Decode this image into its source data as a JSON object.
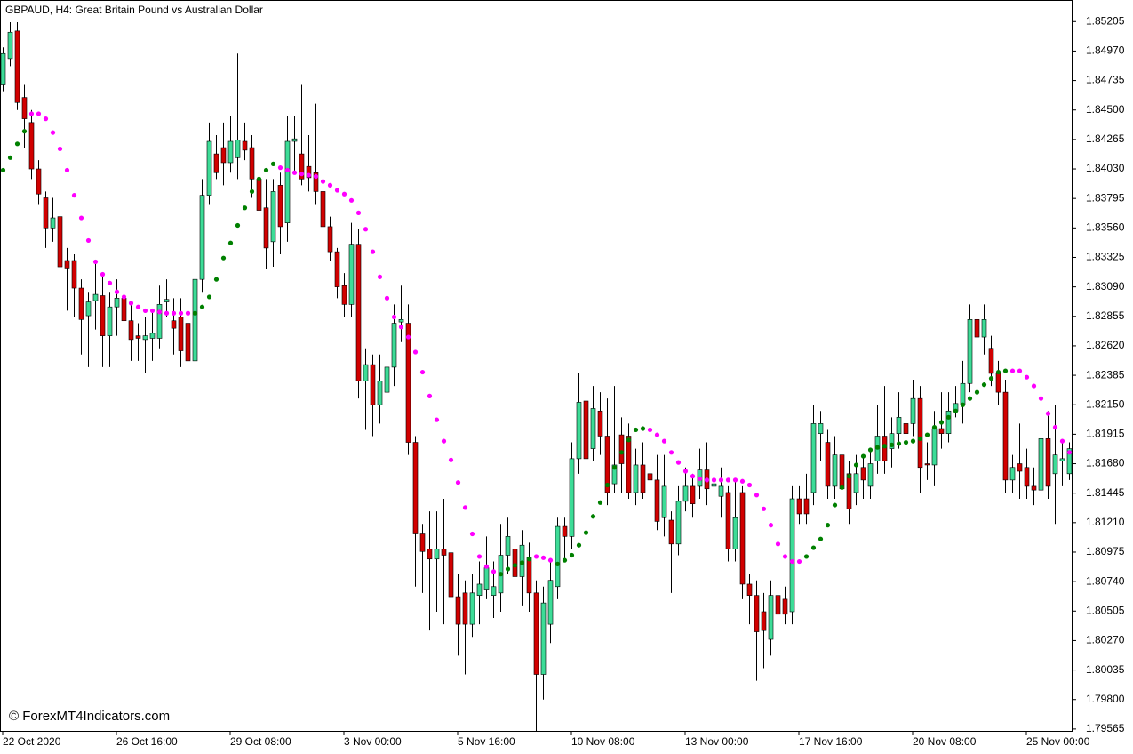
{
  "chart_data": {
    "type": "candlestick",
    "title": "GBPAUD, H4:  Great Britain Pound vs Australian Dollar",
    "watermark": "© ForexMT4Indicators.com",
    "up_color": "#3ddc97",
    "down_color": "#d10000",
    "wick_color": "#000000",
    "sar_below_color": "#008000",
    "sar_above_color": "#ff00ff",
    "ylim": [
      1.7955,
      1.8537
    ],
    "yticks": [
      1.85205,
      {
        "value": 1.8497,
        "label": "1.84970"
      },
      1.84735,
      {
        "value": 1.845,
        "label": "1.84500"
      },
      1.84265,
      {
        "value": 1.8403,
        "label": "1.84030"
      },
      1.83795,
      {
        "value": 1.8356,
        "label": "1.83560"
      },
      1.83325,
      {
        "value": 1.8309,
        "label": "1.83090"
      },
      1.82855,
      {
        "value": 1.8262,
        "label": "1.82620"
      },
      1.82385,
      {
        "value": 1.8215,
        "label": "1.82150"
      },
      1.81915,
      {
        "value": 1.8168,
        "label": "1.81680"
      },
      1.81445,
      {
        "value": 1.8121,
        "label": "1.81210"
      },
      1.80975,
      {
        "value": 1.8074,
        "label": "1.80740"
      },
      1.80505,
      {
        "value": 1.8027,
        "label": "1.80270"
      },
      1.80035,
      {
        "value": 1.798,
        "label": "1.79800"
      },
      1.79565
    ],
    "xticks": [
      {
        "value": 0,
        "label": "22 Oct 2020"
      },
      {
        "value": 16,
        "label": "26 Oct 16:00"
      },
      {
        "value": 32,
        "label": "29 Oct 08:00"
      },
      {
        "value": 48,
        "label": "3 Nov 00:00"
      },
      {
        "value": 64,
        "label": "5 Nov 16:00"
      },
      {
        "value": 80,
        "label": "10 Nov 08:00"
      },
      {
        "value": 96,
        "label": "13 Nov 00:00"
      },
      {
        "value": 112,
        "label": "17 Nov 16:00"
      },
      {
        "value": 128,
        "label": "20 Nov 08:00"
      },
      {
        "value": 144,
        "label": "25 Nov 00:00"
      }
    ],
    "open": [
      1.847,
      1.8491,
      1.8513,
      1.846,
      1.844,
      1.8403,
      1.838,
      1.8356,
      1.8365,
      1.833,
      1.833,
      1.8308,
      1.8286,
      1.8298,
      1.8302,
      1.827,
      1.8293,
      1.83,
      1.8282,
      1.827,
      1.8267,
      1.8268,
      1.8268,
      1.8297,
      1.8282,
      1.8285,
      1.828,
      1.825,
      1.8315,
      1.8382,
      1.8415,
      1.842,
      1.8408,
      1.8412,
      1.8425,
      1.842,
      1.8395,
      1.8372,
      1.8345,
      1.839,
      1.836,
      1.8425,
      1.8415,
      1.8405,
      1.84,
      1.8385,
      1.8357,
      1.8337,
      1.831,
      1.8295,
      1.8343,
      1.8234,
      1.8247,
      1.8215,
      1.8225,
      1.8245,
      1.8281,
      1.828,
      1.8185,
      1.8112,
      1.81,
      1.8092,
      1.81,
      1.8097,
      1.8062,
      1.8065,
      1.804,
      1.8063,
      1.8068,
      1.8063,
      1.8065,
      1.8095,
      1.81,
      1.8078,
      1.8093,
      1.8065,
      1.8,
      1.804,
      1.807,
      1.8118,
      1.811,
      1.8172,
      1.8218,
      1.818,
      1.821,
      1.819,
      1.8152,
      1.8191,
      1.819,
      1.8145,
      1.8167,
      1.816,
      1.8155,
      1.8125,
      1.8123,
      1.8104,
      1.8138,
      1.815,
      1.815,
      1.8163,
      1.815,
      1.8142,
      1.8145,
      1.81,
      1.8145,
      1.8072,
      1.8063,
      1.805,
      1.8028,
      1.8063,
      1.806,
      1.805,
      1.814,
      1.814,
      1.8145,
      1.8192,
      1.8185,
      1.815,
      1.8175,
      1.816,
      1.8145,
      1.8165,
      1.815,
      1.817,
      1.819,
      1.818,
      1.8192,
      1.82,
      1.82,
      1.822,
      1.8168,
      1.8167,
      1.8196,
      1.8192,
      1.821,
      1.8215,
      1.8232,
      1.8283,
      1.8269,
      1.826,
      1.824,
      1.8225,
      1.8155,
      1.8168,
      1.8165,
      1.815,
      1.8147,
      1.8188,
      1.816,
      1.817,
      1.816
    ],
    "high": [
      1.85,
      1.852,
      1.852,
      1.847,
      1.845,
      1.841,
      1.8385,
      1.838,
      1.838,
      1.834,
      1.8335,
      1.8315,
      1.8305,
      1.833,
      1.832,
      1.8305,
      1.8315,
      1.832,
      1.8295,
      1.828,
      1.8285,
      1.829,
      1.831,
      1.8315,
      1.83,
      1.83,
      1.8295,
      1.833,
      1.8395,
      1.844,
      1.843,
      1.844,
      1.8445,
      1.8495,
      1.844,
      1.843,
      1.842,
      1.8395,
      1.8395,
      1.84,
      1.8445,
      1.8445,
      1.847,
      1.843,
      1.8455,
      1.8415,
      1.8365,
      1.834,
      1.832,
      1.836,
      1.8355,
      1.826,
      1.8255,
      1.8255,
      1.827,
      1.8295,
      1.831,
      1.8295,
      1.819,
      1.812,
      1.813,
      1.813,
      1.814,
      1.8115,
      1.808,
      1.8075,
      1.808,
      1.809,
      1.811,
      1.809,
      1.812,
      1.8125,
      1.812,
      1.8115,
      1.8105,
      1.8075,
      1.807,
      1.809,
      1.8125,
      1.8125,
      1.8185,
      1.824,
      1.826,
      1.823,
      1.8225,
      1.822,
      1.823,
      1.8205,
      1.82,
      1.818,
      1.8185,
      1.819,
      1.8175,
      1.8175,
      1.813,
      1.815,
      1.8165,
      1.816,
      1.818,
      1.8185,
      1.817,
      1.8165,
      1.815,
      1.8155,
      1.815,
      1.808,
      1.8075,
      1.8065,
      1.8075,
      1.8075,
      1.807,
      1.815,
      1.815,
      1.816,
      1.8215,
      1.821,
      1.8195,
      1.819,
      1.82,
      1.817,
      1.8175,
      1.8175,
      1.818,
      1.8215,
      1.823,
      1.8205,
      1.8225,
      1.8215,
      1.8235,
      1.823,
      1.8185,
      1.821,
      1.8225,
      1.8225,
      1.823,
      1.825,
      1.8295,
      1.8316,
      1.8295,
      1.827,
      1.825,
      1.8235,
      1.8175,
      1.82,
      1.818,
      1.8165,
      1.82,
      1.821,
      1.8215,
      1.8185,
      1.8185
    ],
    "low": [
      1.8465,
      1.8485,
      1.845,
      1.842,
      1.8395,
      1.8375,
      1.834,
      1.8345,
      1.8315,
      1.829,
      1.8285,
      1.8255,
      1.8245,
      1.8275,
      1.8245,
      1.8245,
      1.827,
      1.825,
      1.825,
      1.825,
      1.824,
      1.825,
      1.826,
      1.8285,
      1.8255,
      1.8245,
      1.824,
      1.8215,
      1.8305,
      1.8375,
      1.8395,
      1.839,
      1.84,
      1.8395,
      1.841,
      1.838,
      1.835,
      1.8323,
      1.8325,
      1.8335,
      1.8345,
      1.84,
      1.839,
      1.8385,
      1.8375,
      1.834,
      1.833,
      1.83,
      1.8285,
      1.8285,
      1.822,
      1.8195,
      1.819,
      1.82,
      1.819,
      1.823,
      1.8265,
      1.8175,
      1.807,
      1.8065,
      1.8035,
      1.805,
      1.804,
      1.8035,
      1.8015,
      1.8,
      1.803,
      1.804,
      1.806,
      1.8045,
      1.805,
      1.808,
      1.8065,
      1.8055,
      1.805,
      1.7955,
      1.798,
      1.8025,
      1.806,
      1.809,
      1.81,
      1.816,
      1.8165,
      1.817,
      1.8175,
      1.8135,
      1.8145,
      1.8145,
      1.814,
      1.8135,
      1.814,
      1.814,
      1.8115,
      1.811,
      1.8065,
      1.8095,
      1.813,
      1.8125,
      1.814,
      1.8135,
      1.8135,
      1.8125,
      1.809,
      1.809,
      1.806,
      1.804,
      1.7995,
      1.8005,
      1.8015,
      1.8035,
      1.804,
      1.804,
      1.812,
      1.812,
      1.8135,
      1.817,
      1.814,
      1.814,
      1.813,
      1.812,
      1.8135,
      1.814,
      1.814,
      1.816,
      1.816,
      1.8165,
      1.818,
      1.818,
      1.819,
      1.8145,
      1.8155,
      1.815,
      1.818,
      1.8185,
      1.8205,
      1.82,
      1.8225,
      1.8255,
      1.8255,
      1.823,
      1.8215,
      1.8145,
      1.8145,
      1.814,
      1.814,
      1.8135,
      1.8135,
      1.814,
      1.812,
      1.815,
      1.8155
    ],
    "close": [
      1.8495,
      1.8512,
      1.8456,
      1.8443,
      1.8403,
      1.8383,
      1.8356,
      1.8364,
      1.8325,
      1.8324,
      1.8308,
      1.8283,
      1.8297,
      1.8303,
      1.827,
      1.8293,
      1.83,
      1.8282,
      1.8267,
      1.8268,
      1.827,
      1.8272,
      1.8295,
      1.8299,
      1.8276,
      1.8258,
      1.825,
      1.8315,
      1.8382,
      1.8425,
      1.84,
      1.8408,
      1.8425,
      1.8426,
      1.8418,
      1.8395,
      1.837,
      1.834,
      1.8385,
      1.8357,
      1.8425,
      1.8427,
      1.8395,
      1.8396,
      1.8385,
      1.8357,
      1.8337,
      1.8309,
      1.8295,
      1.8343,
      1.8234,
      1.8247,
      1.8215,
      1.8234,
      1.8245,
      1.828,
      1.8283,
      1.8185,
      1.8112,
      1.8098,
      1.8092,
      1.81,
      1.8095,
      1.8062,
      1.804,
      1.804,
      1.8065,
      1.8072,
      1.8085,
      1.807,
      1.8095,
      1.811,
      1.8078,
      1.8103,
      1.8065,
      1.8,
      1.8057,
      1.8075,
      1.8118,
      1.811,
      1.8172,
      1.8217,
      1.8172,
      1.8212,
      1.819,
      1.8145,
      1.8167,
      1.8168,
      1.8145,
      1.8167,
      1.8145,
      1.8155,
      1.8122,
      1.815,
      1.8104,
      1.8138,
      1.815,
      1.8136,
      1.8163,
      1.8148,
      1.8152,
      1.815,
      1.81,
      1.8125,
      1.8072,
      1.8063,
      1.8034,
      1.8035,
      1.8063,
      1.8048,
      1.8048,
      1.814,
      1.8128,
      1.8128,
      1.82,
      1.82,
      1.815,
      1.8175,
      1.8148,
      1.8132,
      1.816,
      1.8155,
      1.8168,
      1.819,
      1.817,
      1.8192,
      1.8205,
      1.8192,
      1.822,
      1.8165,
      1.8167,
      1.8196,
      1.8192,
      1.821,
      1.8216,
      1.8232,
      1.8283,
      1.8269,
      1.8283,
      1.824,
      1.8225,
      1.8155,
      1.8165,
      1.8162,
      1.815,
      1.8147,
      1.8188,
      1.815,
      1.8175,
      1.8172,
      1.818
    ],
    "sar_below": [
      1.8402,
      1.8412,
      1.8423,
      1.8433,
      null,
      null,
      null,
      null,
      null,
      null,
      null,
      null,
      null,
      null,
      null,
      null,
      null,
      null,
      null,
      null,
      null,
      null,
      null,
      null,
      null,
      null,
      null,
      1.8288,
      1.8293,
      1.8301,
      1.8315,
      1.8332,
      1.8344,
      1.8358,
      1.8372,
      1.8385,
      1.8395,
      1.8402,
      1.8407,
      null,
      null,
      null,
      null,
      null,
      null,
      null,
      null,
      null,
      null,
      null,
      null,
      null,
      null,
      null,
      null,
      null,
      null,
      null,
      null,
      null,
      null,
      null,
      null,
      null,
      null,
      null,
      null,
      null,
      null,
      null,
      1.808,
      1.8084,
      1.8087,
      1.8089,
      1.8092,
      null,
      null,
      null,
      1.8088,
      1.8091,
      1.8095,
      1.8103,
      1.8113,
      1.8126,
      1.8137,
      1.8151,
      1.8165,
      1.8177,
      1.8187,
      1.8195,
      1.8196,
      null,
      null,
      null,
      null,
      null,
      null,
      null,
      null,
      null,
      null,
      null,
      null,
      null,
      null,
      null,
      null,
      null,
      null,
      null,
      null,
      null,
      null,
      1.8094,
      1.8101,
      1.8108,
      1.8119,
      1.8135,
      1.8149,
      1.8158,
      1.8167,
      1.8174,
      1.8179,
      1.8181,
      1.8182,
      1.8183,
      1.8184,
      1.8185,
      1.8186,
      1.8188,
      1.8191,
      1.8197,
      1.8201,
      1.8205,
      1.821,
      1.8215,
      1.822,
      1.8225,
      1.8231,
      1.8236,
      1.8241,
      1.8242,
      null,
      null,
      null,
      null,
      null,
      null,
      null,
      null,
      null
    ],
    "sar_above": [
      null,
      null,
      null,
      null,
      1.8447,
      1.8447,
      1.8443,
      1.8432,
      1.8419,
      1.8402,
      1.8382,
      1.8364,
      1.8346,
      1.8329,
      1.8319,
      1.8312,
      1.8305,
      1.8301,
      1.8296,
      1.8293,
      1.829,
      1.829,
      1.8289,
      1.8288,
      1.8288,
      1.8288,
      1.8288,
      null,
      null,
      null,
      null,
      null,
      null,
      null,
      null,
      null,
      null,
      null,
      null,
      1.8404,
      1.8402,
      1.84,
      1.8399,
      1.8398,
      1.8397,
      1.8393,
      1.839,
      1.8386,
      1.8383,
      1.8378,
      1.8368,
      1.8355,
      1.8337,
      1.8317,
      1.83,
      1.8285,
      1.8277,
      1.8269,
      1.8257,
      1.8241,
      1.8222,
      1.8203,
      1.8186,
      1.8171,
      1.8153,
      1.8133,
      1.8112,
      1.8094,
      1.8086,
      1.8082,
      null,
      null,
      null,
      null,
      null,
      1.8094,
      1.8093,
      1.8091,
      null,
      null,
      null,
      null,
      null,
      null,
      null,
      null,
      null,
      null,
      null,
      null,
      null,
      1.8195,
      1.8191,
      1.8186,
      1.8177,
      1.8169,
      1.8162,
      1.8158,
      1.8156,
      1.8155,
      1.8155,
      1.8155,
      1.8155,
      1.8155,
      1.8154,
      1.8151,
      1.8143,
      1.8132,
      1.8119,
      1.8104,
      1.8094,
      1.809,
      1.809,
      null,
      null,
      null,
      null,
      null,
      null,
      null,
      null,
      null,
      null,
      null,
      null,
      null,
      null,
      null,
      null,
      null,
      null,
      null,
      null,
      null,
      null,
      null,
      null,
      null,
      null,
      null,
      null,
      null,
      1.8242,
      1.8242,
      1.8237,
      1.823,
      1.822,
      1.8208,
      1.8197,
      1.8186,
      1.8177
    ]
  }
}
